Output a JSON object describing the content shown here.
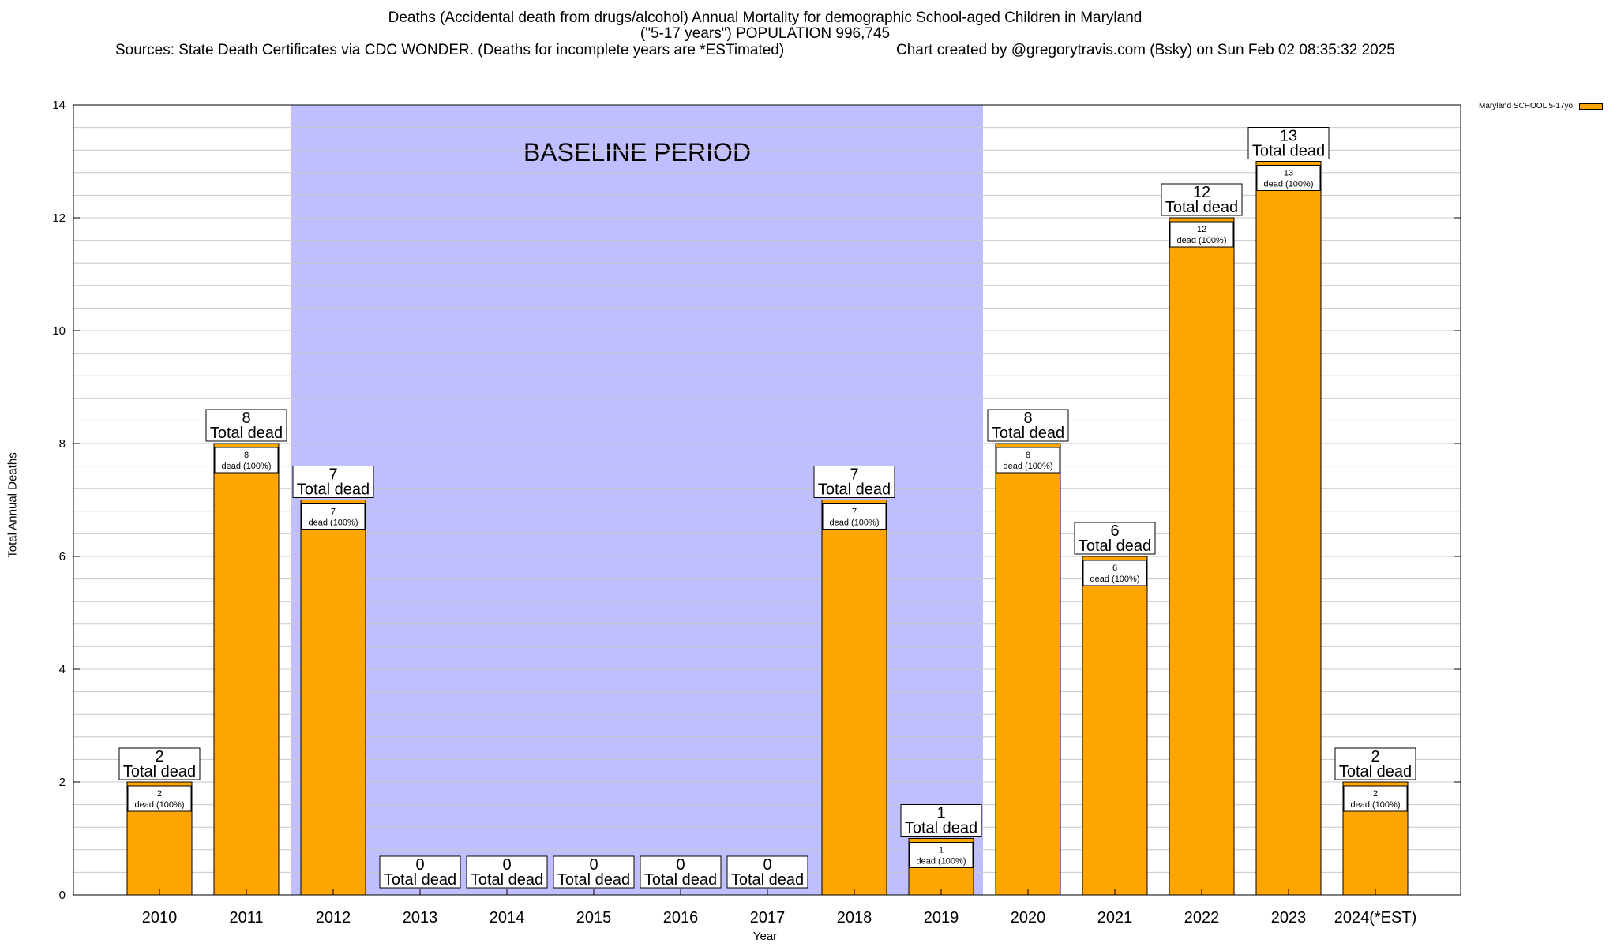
{
  "header": {
    "title_line1": "Deaths (Accidental death from drugs/alcohol) Annual Mortality for demographic School-aged Children in Maryland",
    "title_line2": "(\"5-17 years\") POPULATION 996,745",
    "sources": "Sources: State Death Certificates via CDC WONDER. (Deaths for incomplete years are *ESTimated)",
    "credit": "Chart created by @gregorytravis.com (Bsky) on Sun Feb 02 08:35:32 2025"
  },
  "legend": {
    "label": "Maryland SCHOOL 5-17yo",
    "color": "#ffa500"
  },
  "chart_data": {
    "type": "bar",
    "ylabel": "Total Annual Deaths",
    "xlabel": "Year",
    "ylim": [
      0,
      14
    ],
    "yticks": [
      0,
      2,
      4,
      6,
      8,
      10,
      12,
      14
    ],
    "y_minor_step": 0.4,
    "grid": true,
    "legend_position": "outside top-right",
    "bar_color": "#ffa500",
    "baseline_period": {
      "label": "BASELINE PERIOD",
      "from": "2012",
      "to": "2019",
      "color": "#bfbfff"
    },
    "categories": [
      "2010",
      "2011",
      "2012",
      "2013",
      "2014",
      "2015",
      "2016",
      "2017",
      "2018",
      "2019",
      "2020",
      "2021",
      "2022",
      "2023",
      "2024(*EST)"
    ],
    "series": [
      {
        "name": "Maryland SCHOOL 5-17yo",
        "values": [
          2,
          8,
          7,
          0,
          0,
          0,
          0,
          0,
          7,
          1,
          8,
          6,
          12,
          13,
          2
        ]
      }
    ],
    "total_label_suffix": "Total dead",
    "inner_label_suffix": "dead (100%)"
  }
}
